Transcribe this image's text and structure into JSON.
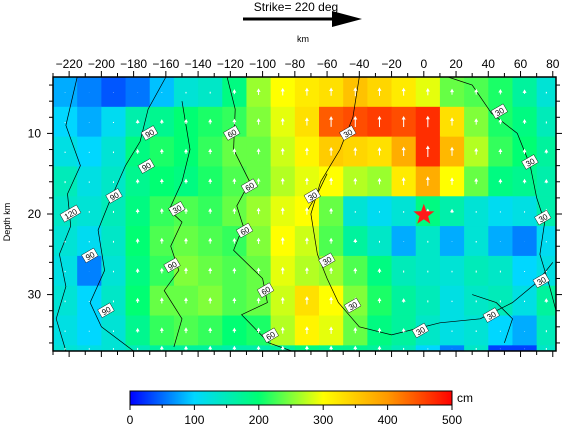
{
  "header": {
    "strike_text": "Strike= 220 deg",
    "top_axis_unit": "km"
  },
  "colorbar": {
    "unit": "cm",
    "ticks": [
      0,
      100,
      200,
      300,
      400,
      500
    ],
    "range": [
      0,
      500
    ],
    "colors": [
      "#0000ff",
      "#00d7ff",
      "#00ff73",
      "#ffff00",
      "#ff9900",
      "#ff0000"
    ]
  },
  "colors": {
    "hypocenter": "#ff1a1a",
    "contour": "#000000",
    "arrow": "#ffffff"
  },
  "icons": {
    "strike_arrow": "arrow-right-icon",
    "hypocenter": "star-icon",
    "rake": "arrow-up-icon"
  },
  "chart_data": {
    "type": "heatmap",
    "title": "",
    "xlabel": "km",
    "ylabel": "Depth km",
    "xlim": [
      -230,
      82
    ],
    "ylim": [
      37,
      3
    ],
    "x_ticks": [
      -220,
      -200,
      -180,
      -160,
      -140,
      -120,
      -100,
      -80,
      -60,
      -40,
      -20,
      0,
      20,
      40,
      60,
      80
    ],
    "y_ticks": [
      10,
      20,
      30
    ],
    "x_edges": [
      -230,
      -215,
      -200,
      -185,
      -170,
      -155,
      -140,
      -125,
      -110,
      -95,
      -80,
      -65,
      -50,
      -35,
      -20,
      -5,
      10,
      25,
      40,
      55,
      70,
      82
    ],
    "y_edges": [
      3,
      6.7,
      10.4,
      14.1,
      17.8,
      21.5,
      25.2,
      28.9,
      32.6,
      36.3,
      37
    ],
    "slip_cm": [
      [
        80,
        60,
        40,
        55,
        90,
        130,
        140,
        190,
        260,
        300,
        320,
        330,
        360,
        340,
        320,
        290,
        240,
        230,
        210,
        170,
        130,
        110
      ],
      [
        100,
        80,
        110,
        160,
        180,
        200,
        210,
        220,
        250,
        290,
        330,
        440,
        450,
        460,
        450,
        470,
        330,
        250,
        210,
        190,
        150,
        120
      ],
      [
        120,
        100,
        130,
        190,
        210,
        200,
        220,
        240,
        240,
        280,
        310,
        350,
        340,
        330,
        380,
        470,
        370,
        270,
        220,
        200,
        170,
        140
      ],
      [
        150,
        120,
        140,
        180,
        200,
        190,
        210,
        230,
        240,
        270,
        290,
        300,
        270,
        260,
        320,
        380,
        300,
        240,
        190,
        180,
        160,
        140
      ],
      [
        140,
        130,
        150,
        190,
        220,
        230,
        220,
        240,
        260,
        290,
        300,
        240,
        130,
        110,
        130,
        190,
        160,
        130,
        110,
        120,
        160,
        150
      ],
      [
        130,
        110,
        140,
        200,
        230,
        240,
        230,
        220,
        250,
        300,
        280,
        230,
        170,
        140,
        80,
        140,
        80,
        130,
        80,
        60,
        110,
        60
      ],
      [
        120,
        60,
        130,
        190,
        220,
        250,
        240,
        230,
        240,
        290,
        270,
        260,
        230,
        190,
        150,
        140,
        130,
        150,
        140,
        100,
        120,
        150
      ],
      [
        130,
        100,
        140,
        200,
        240,
        240,
        250,
        230,
        240,
        280,
        330,
        300,
        250,
        210,
        170,
        150,
        120,
        140,
        150,
        120,
        170,
        160
      ],
      [
        120,
        100,
        130,
        180,
        220,
        230,
        220,
        200,
        210,
        270,
        310,
        290,
        240,
        190,
        170,
        140,
        120,
        130,
        100,
        80,
        150,
        170
      ],
      [
        130,
        120,
        130,
        150,
        170,
        170,
        170,
        160,
        160,
        170,
        190,
        180,
        180,
        170,
        150,
        100,
        60,
        140,
        30,
        30,
        140,
        150
      ]
    ],
    "contour_levels": [
      30,
      60,
      90,
      120
    ],
    "contour_labels": [
      {
        "text": "90",
        "x": -170,
        "y": 10.0
      },
      {
        "text": "60",
        "x": -119,
        "y": 10.0
      },
      {
        "text": "90",
        "x": -172,
        "y": 14.1
      },
      {
        "text": "90",
        "x": -192,
        "y": 17.8
      },
      {
        "text": "60",
        "x": -108,
        "y": 16.6
      },
      {
        "text": "30",
        "x": -47,
        "y": 10.0
      },
      {
        "text": "30",
        "x": 47,
        "y": 7.3
      },
      {
        "text": "30",
        "x": 66,
        "y": 13.6
      },
      {
        "text": "120",
        "x": -219,
        "y": 20.0
      },
      {
        "text": "30",
        "x": -153,
        "y": 19.4
      },
      {
        "text": "30",
        "x": -69,
        "y": 17.8
      },
      {
        "text": "60",
        "x": -111,
        "y": 22.1
      },
      {
        "text": "30",
        "x": 74,
        "y": 20.5
      },
      {
        "text": "30",
        "x": -60,
        "y": 25.8
      },
      {
        "text": "90",
        "x": -207,
        "y": 25.2
      },
      {
        "text": "90",
        "x": -156,
        "y": 26.4
      },
      {
        "text": "60",
        "x": -98,
        "y": 29.5
      },
      {
        "text": "30",
        "x": 73,
        "y": 28.3
      },
      {
        "text": "30",
        "x": -44,
        "y": 31.4
      },
      {
        "text": "90",
        "x": -197,
        "y": 32.0
      },
      {
        "text": "30",
        "x": 42,
        "y": 32.6
      },
      {
        "text": "60",
        "x": -95,
        "y": 35.1
      },
      {
        "text": "30",
        "x": -2,
        "y": 34.5
      }
    ],
    "hypocenter": {
      "x": 0,
      "y": 20.1
    },
    "grid": false
  }
}
